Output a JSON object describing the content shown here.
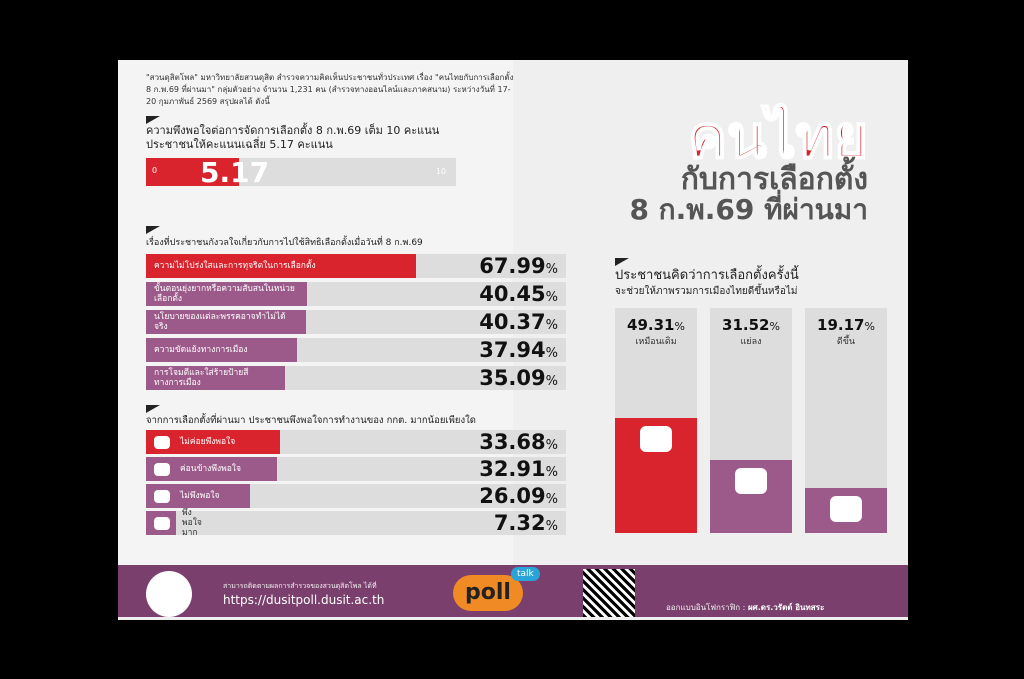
{
  "title": {
    "line1": "คนไทย",
    "line2": "กับการเลือกตั้ง",
    "line3": "8 ก.พ.69 ที่ผ่านมา"
  },
  "intro": "\"สวนดุสิตโพล\" มหาวิทยาลัยสวนดุสิต สำรวจความคิดเห็นประชาชนทั่วประเทศ เรื่อง \"คนไทยกับการเลือกตั้ง 8 ก.พ.69 ที่ผ่านมา\" กลุ่มตัวอย่าง จำนวน 1,231 คน (สำรวจทางออนไลน์และภาคสนาม) ระหว่างวันที่ 17-20 กุมภาพันธ์ 2569 สรุปผลได้ ดังนี้",
  "colors": {
    "red": "#d9232d",
    "purple": "#9b5a8a",
    "gray": "#dddddd",
    "footer": "#7b3f6e"
  },
  "chart_data": [
    {
      "type": "bar",
      "title": "ความพึงพอใจต่อการจัดการเลือกตั้ง 8 ก.พ.69 เต็ม 10 คะแนน ประชาชนให้คะแนนเฉลี่ย 5.17 คะแนน",
      "min_label": "0",
      "max_label": "10",
      "value": 5.17,
      "value_label": "5.17",
      "xlim": [
        0,
        10
      ]
    },
    {
      "type": "bar",
      "title": "เรื่องที่ประชาชนกังวลใจเกี่ยวกับการไปใช้สิทธิเลือกตั้งเมื่อวันที่ 8 ก.พ.69",
      "categories": [
        "ความไม่โปร่งใสและการทุจริตในการเลือกตั้ง",
        "ขั้นตอนยุ่งยากหรือความสับสนในหน่วยเลือกตั้ง",
        "นโยบายของแต่ละพรรคอาจทำไม่ได้จริง",
        "ความขัดแย้งทางการเมือง",
        "การโจมตีและใส่ร้ายป้ายสีทางการเมือง"
      ],
      "values": [
        67.99,
        40.45,
        40.37,
        37.94,
        35.09
      ],
      "labels": [
        "67.99",
        "40.45",
        "40.37",
        "37.94",
        "35.09"
      ],
      "unit": "%"
    },
    {
      "type": "bar",
      "title": "จากการเลือกตั้งที่ผ่านมา ประชาชนพึงพอใจการทำงานของ กกต. มากน้อยเพียงใด",
      "categories": [
        "ไม่ค่อยพึงพอใจ",
        "ค่อนข้างพึงพอใจ",
        "ไม่พึงพอใจ",
        "พึงพอใจมาก"
      ],
      "values": [
        33.68,
        32.91,
        26.09,
        7.32
      ],
      "labels": [
        "33.68",
        "32.91",
        "26.09",
        "7.32"
      ],
      "unit": "%"
    },
    {
      "type": "bar",
      "orientation": "vertical",
      "title": "ประชาชนคิดว่าการเลือกตั้งครั้งนี้",
      "subtitle": "จะช่วยให้ภาพรวมการเมืองไทยดีขึ้นหรือไม่",
      "categories": [
        "เหมือนเดิม",
        "แย่ลง",
        "ดีขึ้น"
      ],
      "values": [
        49.31,
        31.52,
        19.17
      ],
      "labels": [
        "49.31",
        "31.52",
        "19.17"
      ],
      "unit": "%"
    }
  ],
  "footer": {
    "follow": "สามารถติดตามผลการสำรวจของสวนดุสิตโพล ได้ที่",
    "url": "https://dusitpoll.dusit.ac.th",
    "poll_logo": "poll",
    "talk": "talk",
    "credit_label": "ออกแบบอินโฟกราฟิก :",
    "credit_name": "ผศ.ดร.วรัตต์ อินทสระ"
  }
}
